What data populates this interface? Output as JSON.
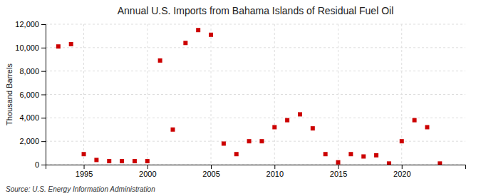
{
  "chart_data": {
    "type": "scatter",
    "title": "Annual U.S. Imports from Bahama Islands of Residual Fuel Oil",
    "y_label": "Thousand Barrels",
    "annotations": [
      "Source: U.S. Energy Information Administration"
    ],
    "x": [
      1993,
      1994,
      1995,
      1996,
      1997,
      1998,
      1999,
      2000,
      2001,
      2002,
      2003,
      2004,
      2005,
      2006,
      2007,
      2008,
      2009,
      2010,
      2011,
      2012,
      2013,
      2014,
      2015,
      2016,
      2017,
      2018,
      2019,
      2020,
      2021,
      2022,
      2023
    ],
    "values": [
      10100,
      10300,
      900,
      400,
      300,
      300,
      300,
      300,
      8900,
      3000,
      10400,
      11500,
      11100,
      1800,
      900,
      2000,
      2000,
      3200,
      3800,
      4300,
      3100,
      900,
      200,
      900,
      700,
      800,
      100,
      2000,
      3800,
      3200,
      100
    ],
    "color": "#cc0000",
    "marker": "square",
    "xlim": [
      1992,
      2025
    ],
    "xticks": [
      1995,
      2000,
      2005,
      2010,
      2015,
      2020
    ],
    "ylim": [
      0,
      12000
    ],
    "yticks": [
      0,
      {
        "value": 2000,
        "label": "2,000"
      },
      {
        "value": 4000,
        "label": "4,000"
      },
      {
        "value": 6000,
        "label": "6,000"
      },
      {
        "value": 8000,
        "label": "8,000"
      },
      {
        "value": 10000,
        "label": "10,000"
      },
      {
        "value": 12000,
        "label": "12,000"
      }
    ],
    "grid": true
  }
}
